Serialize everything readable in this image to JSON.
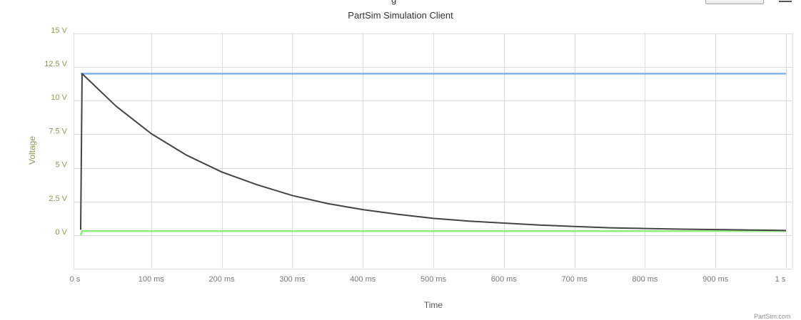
{
  "header": {
    "clipped_label": "g"
  },
  "footer": {
    "credit": "PartSim.com"
  },
  "chart_data": {
    "type": "line",
    "title": "PartSim Simulation Client",
    "xlabel": "Time",
    "ylabel": "Voltage",
    "xlim": [
      0,
      1
    ],
    "ylim": [
      -2.5,
      15
    ],
    "y_ticks": [
      {
        "value": 15,
        "label": "15 V"
      },
      {
        "value": 12.5,
        "label": "12.5 V"
      },
      {
        "value": 10,
        "label": "10 V"
      },
      {
        "value": 7.5,
        "label": "7.5 V"
      },
      {
        "value": 5,
        "label": "5 V"
      },
      {
        "value": 2.5,
        "label": "2.5 V"
      },
      {
        "value": 0,
        "label": "0 V"
      }
    ],
    "x_ticks": [
      {
        "value": 0,
        "label": "0 s"
      },
      {
        "value": 0.1,
        "label": "100 ms"
      },
      {
        "value": 0.2,
        "label": "200 ms"
      },
      {
        "value": 0.3,
        "label": "300 ms"
      },
      {
        "value": 0.4,
        "label": "400 ms"
      },
      {
        "value": 0.5,
        "label": "500 ms"
      },
      {
        "value": 0.6,
        "label": "600 ms"
      },
      {
        "value": 0.7,
        "label": "700 ms"
      },
      {
        "value": 0.8,
        "label": "800 ms"
      },
      {
        "value": 0.9,
        "label": "900 ms"
      },
      {
        "value": 1,
        "label": "1 s"
      }
    ],
    "grid": true,
    "legend": "none",
    "series": [
      {
        "color": "#7cb5ec",
        "x": [
          0,
          1
        ],
        "y": [
          12,
          12
        ]
      },
      {
        "color": "#90ed7d",
        "x": [
          0,
          0.002,
          1
        ],
        "y": [
          0,
          0.3,
          0.3
        ]
      },
      {
        "color": "#434348",
        "x": [
          0,
          0.002,
          0.05,
          0.1,
          0.15,
          0.2,
          0.25,
          0.3,
          0.35,
          0.4,
          0.45,
          0.5,
          0.55,
          0.6,
          0.65,
          0.7,
          0.75,
          0.8,
          0.85,
          0.9,
          0.95,
          1
        ],
        "y": [
          0.4,
          12,
          9.6,
          7.55,
          5.95,
          4.7,
          3.75,
          2.95,
          2.35,
          1.9,
          1.55,
          1.25,
          1.05,
          0.9,
          0.75,
          0.65,
          0.55,
          0.5,
          0.45,
          0.42,
          0.38,
          0.35
        ]
      }
    ]
  }
}
